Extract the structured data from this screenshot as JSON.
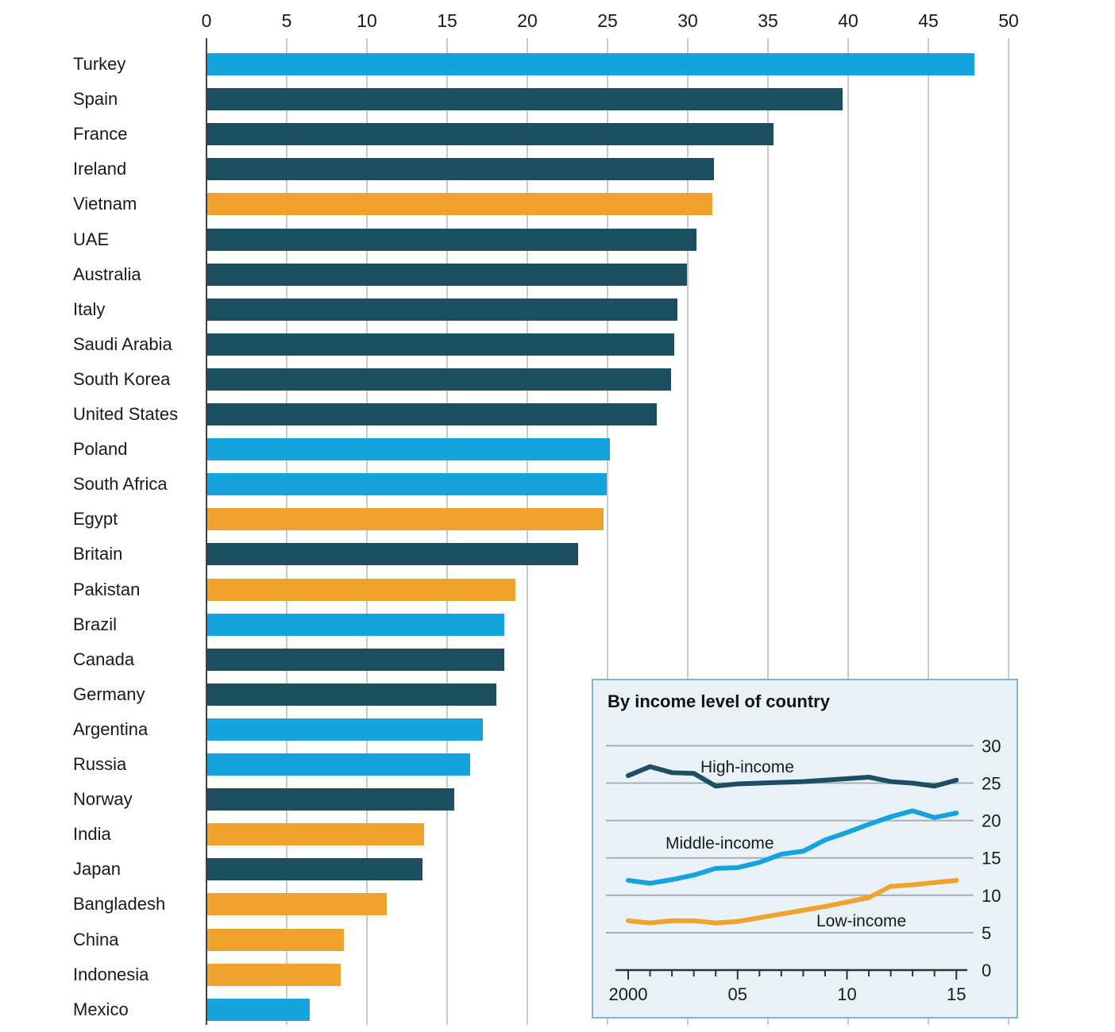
{
  "colors": {
    "cyan": "#14a3dc",
    "navy": "#1d4f63",
    "orange": "#f0a32c",
    "gridline": "#c7cacc",
    "zero_spine": "#3d3f40",
    "inset_background": "#e9f2f9",
    "inset_border": "#7db3d3",
    "inset_gridline": "#a9adb0",
    "inset_axis": "#333333",
    "text": "#1a1a1a"
  },
  "chart_data": [
    {
      "type": "bar",
      "orientation": "horizontal",
      "axis_position": "top",
      "xlim": [
        0,
        50
      ],
      "x_ticks": [
        "0",
        "5",
        "10",
        "15",
        "20",
        "25",
        "30",
        "35",
        "40",
        "45",
        "50"
      ],
      "grid": true,
      "categories": [
        "Turkey",
        "Spain",
        "France",
        "Ireland",
        "Vietnam",
        "UAE",
        "Australia",
        "Italy",
        "Saudi Arabia",
        "South Korea",
        "United States",
        "Poland",
        "South Africa",
        "Egypt",
        "Britain",
        "Pakistan",
        "Brazil",
        "Canada",
        "Germany",
        "Argentina",
        "Russia",
        "Norway",
        "India",
        "Japan",
        "Bangladesh",
        "China",
        "Indonesia",
        "Mexico"
      ],
      "values": [
        47.8,
        39.6,
        35.3,
        31.6,
        31.5,
        30.5,
        29.9,
        29.3,
        29.1,
        28.9,
        28.0,
        25.1,
        24.9,
        24.7,
        23.1,
        19.2,
        18.5,
        18.5,
        18.0,
        17.2,
        16.4,
        15.4,
        13.5,
        13.4,
        11.2,
        8.5,
        8.3,
        6.4
      ],
      "bar_color_groups": [
        "cyan",
        "navy",
        "navy",
        "navy",
        "orange",
        "navy",
        "navy",
        "navy",
        "navy",
        "navy",
        "navy",
        "cyan",
        "cyan",
        "orange",
        "navy",
        "orange",
        "cyan",
        "navy",
        "navy",
        "cyan",
        "cyan",
        "navy",
        "orange",
        "navy",
        "orange",
        "orange",
        "orange",
        "cyan"
      ]
    },
    {
      "type": "line",
      "title": "By income level of country",
      "x": [
        2000,
        2001,
        2002,
        2003,
        2004,
        2005,
        2006,
        2007,
        2008,
        2009,
        2010,
        2011,
        2012,
        2013,
        2014,
        2015
      ],
      "x_tick_labels": [
        "2000",
        "05",
        "10",
        "15"
      ],
      "ylim": [
        0,
        30
      ],
      "y_ticks": [
        "30",
        "25",
        "20",
        "15",
        "10",
        "5",
        "0"
      ],
      "y_axis_side": "right",
      "grid": true,
      "legend_position": "inline-labels",
      "series": [
        {
          "name": "High-income",
          "color_key": "navy",
          "values": [
            26.0,
            27.2,
            26.4,
            26.3,
            24.6,
            24.9,
            25.0,
            25.1,
            25.2,
            25.4,
            25.6,
            25.8,
            25.2,
            25.0,
            24.6,
            25.4
          ]
        },
        {
          "name": "Middle-income",
          "color_key": "cyan",
          "values": [
            12.0,
            11.6,
            12.1,
            12.7,
            13.6,
            13.7,
            14.4,
            15.5,
            15.9,
            17.4,
            18.4,
            19.5,
            20.5,
            21.3,
            20.4,
            21.0
          ]
        },
        {
          "name": "Low-income",
          "color_key": "orange",
          "values": [
            6.6,
            6.3,
            6.6,
            6.6,
            6.3,
            6.5,
            7.0,
            7.5,
            8.0,
            8.5,
            9.1,
            9.7,
            11.2,
            11.4,
            11.7,
            12.0
          ]
        }
      ]
    }
  ]
}
